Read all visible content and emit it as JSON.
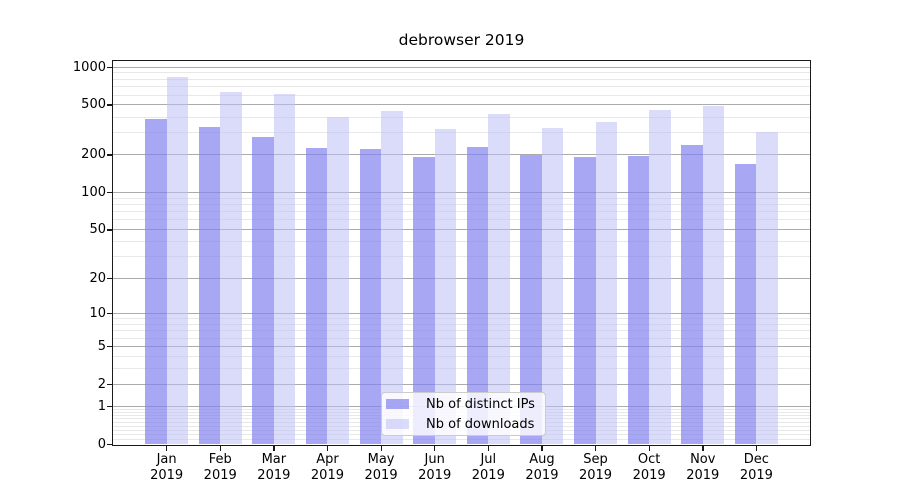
{
  "figure": {
    "title": "debrowser 2019"
  },
  "chart_data": {
    "type": "bar",
    "title": "debrowser 2019",
    "categories": [
      "Jan 2019",
      "Feb 2019",
      "Mar 2019",
      "Apr 2019",
      "May 2019",
      "Jun 2019",
      "Jul 2019",
      "Aug 2019",
      "Sep 2019",
      "Oct 2019",
      "Nov 2019",
      "Dec 2019"
    ],
    "series": [
      {
        "name": "Nb of distinct IPs",
        "color": "rgba(130,130,240,0.7)",
        "values": [
          388,
          335,
          278,
          227,
          222,
          191,
          232,
          199,
          193,
          195,
          240,
          168
        ]
      },
      {
        "name": "Nb of downloads",
        "color": "rgba(190,190,245,0.55)",
        "values": [
          830,
          630,
          615,
          400,
          448,
          320,
          422,
          326,
          365,
          455,
          490,
          303
        ]
      }
    ],
    "xlabel": "",
    "ylabel": "",
    "y_scale": "log10(1+y)",
    "y_ticks": [
      0,
      1,
      2,
      5,
      10,
      20,
      50,
      100,
      200,
      500,
      1000
    ],
    "ylim": [
      0,
      1130
    ],
    "xlim": [
      -1,
      12
    ],
    "bar_width_units": 0.4,
    "grid": true,
    "legend_position": "lower center"
  },
  "colors": {
    "grid_major": "#ababab",
    "grid_minor": "#e8e8e8",
    "spine": "#1a1a1a",
    "text": "#000000",
    "legend_border": "#cccccc",
    "legend_bg": "rgba(255,255,255,0.8)"
  }
}
